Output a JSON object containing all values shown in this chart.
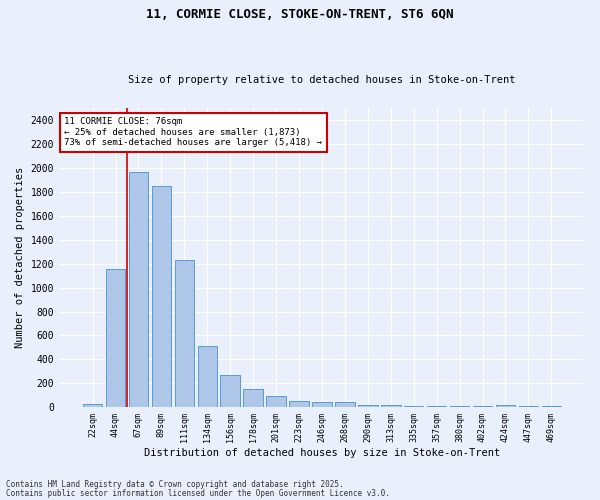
{
  "title_line1": "11, CORMIE CLOSE, STOKE-ON-TRENT, ST6 6QN",
  "title_line2": "Size of property relative to detached houses in Stoke-on-Trent",
  "xlabel": "Distribution of detached houses by size in Stoke-on-Trent",
  "ylabel": "Number of detached properties",
  "categories": [
    "22sqm",
    "44sqm",
    "67sqm",
    "89sqm",
    "111sqm",
    "134sqm",
    "156sqm",
    "178sqm",
    "201sqm",
    "223sqm",
    "246sqm",
    "268sqm",
    "290sqm",
    "313sqm",
    "335sqm",
    "357sqm",
    "380sqm",
    "402sqm",
    "424sqm",
    "447sqm",
    "469sqm"
  ],
  "values": [
    30,
    1160,
    1970,
    1850,
    1230,
    515,
    270,
    155,
    90,
    50,
    40,
    40,
    20,
    15,
    5,
    5,
    5,
    5,
    15,
    5,
    5
  ],
  "bar_color": "#aec6e8",
  "bar_edge_color": "#5b9bd5",
  "annotation_text": "11 CORMIE CLOSE: 76sqm\n← 25% of detached houses are smaller (1,873)\n73% of semi-detached houses are larger (5,418) →",
  "vline_x_index": 1.5,
  "annotation_box_color": "#ffffff",
  "annotation_box_edge": "#cc0000",
  "vline_color": "#cc0000",
  "ylim": [
    0,
    2500
  ],
  "yticks": [
    0,
    200,
    400,
    600,
    800,
    1000,
    1200,
    1400,
    1600,
    1800,
    2000,
    2200,
    2400
  ],
  "footer1": "Contains HM Land Registry data © Crown copyright and database right 2025.",
  "footer2": "Contains public sector information licensed under the Open Government Licence v3.0.",
  "bg_color": "#eaf0fb",
  "plot_bg_color": "#eaf0fb"
}
